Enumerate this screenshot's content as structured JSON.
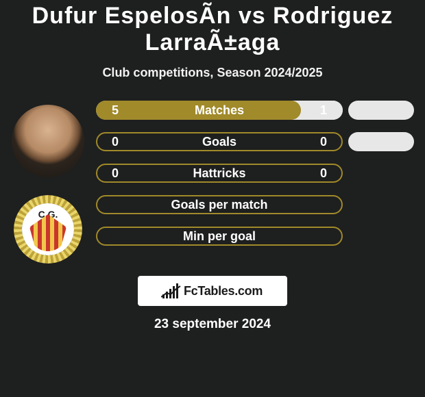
{
  "title": "Dufur EspelosÃ­n vs Rodriguez LarraÃ±aga",
  "subtitle": "Club competitions, Season 2024/2025",
  "colors": {
    "olive": "#a08a2a",
    "olive_border": "#9a8524",
    "gray_pill": "#e7e7e7",
    "white": "#ffffff",
    "bg": "#1e1f1f"
  },
  "bars": [
    {
      "label": "Matches",
      "left_val": "5",
      "right_val": "1",
      "left_pct": 83,
      "right_pct": 17,
      "left_color": "#a08a2a",
      "right_color": "#e7e7e7",
      "outline": false,
      "show_indicator": true
    },
    {
      "label": "Goals",
      "left_val": "0",
      "right_val": "0",
      "left_pct": 0,
      "right_pct": 0,
      "left_color": "#a08a2a",
      "right_color": "#a08a2a",
      "outline": true,
      "show_indicator": true
    },
    {
      "label": "Hattricks",
      "left_val": "0",
      "right_val": "0",
      "left_pct": 0,
      "right_pct": 0,
      "left_color": "#a08a2a",
      "right_color": "#a08a2a",
      "outline": true,
      "show_indicator": false
    },
    {
      "label": "Goals per match",
      "left_val": "",
      "right_val": "",
      "left_pct": 0,
      "right_pct": 0,
      "left_color": "#a08a2a",
      "right_color": "#a08a2a",
      "outline": true,
      "show_indicator": false
    },
    {
      "label": "Min per goal",
      "left_val": "",
      "right_val": "",
      "left_pct": 0,
      "right_pct": 0,
      "left_color": "#a08a2a",
      "right_color": "#a08a2a",
      "outline": true,
      "show_indicator": false
    }
  ],
  "logo_text": "FcTables.com",
  "date_text": "23 september 2024",
  "crest_initials": "C.G."
}
